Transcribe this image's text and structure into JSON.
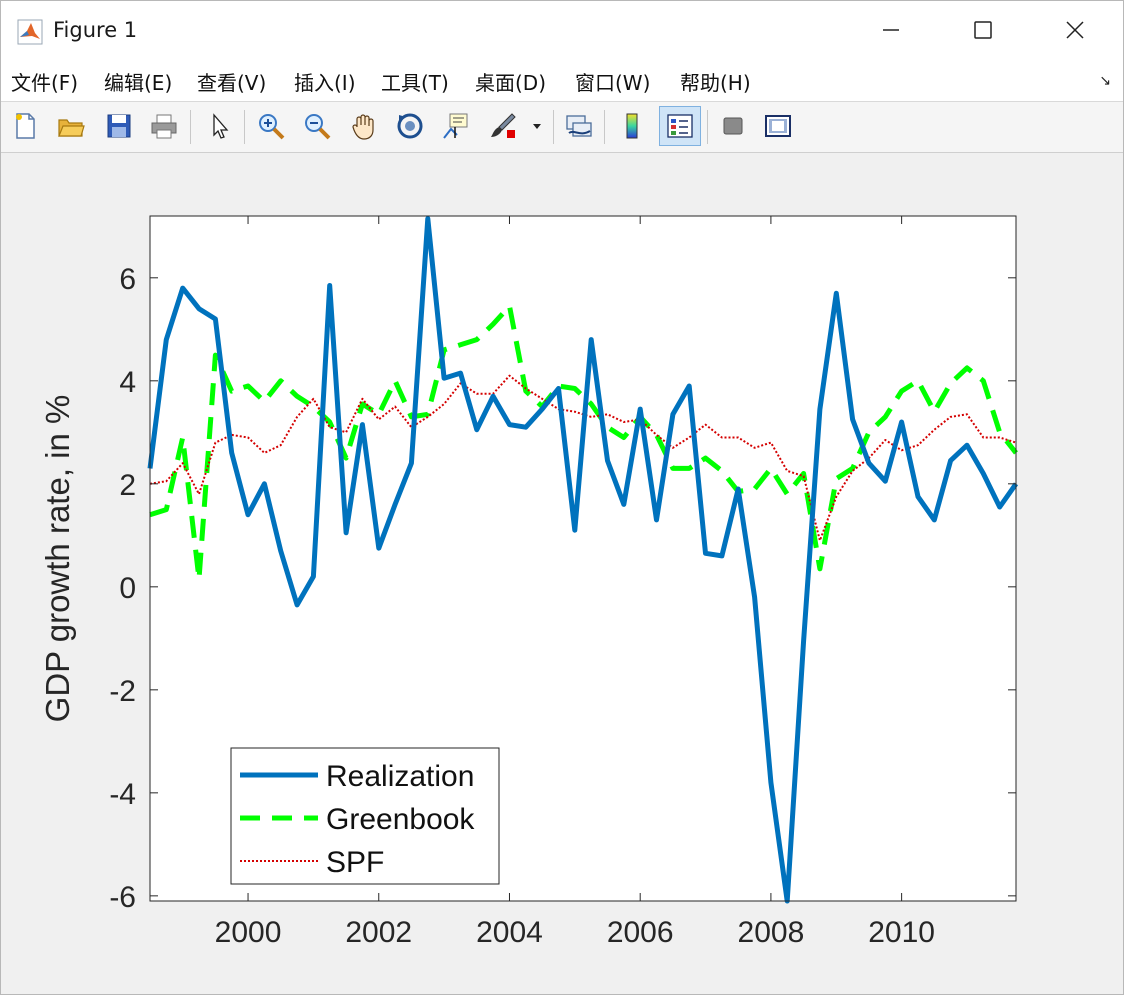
{
  "window": {
    "title": "Figure 1"
  },
  "menu": [
    "文件(F)",
    "编辑(E)",
    "查看(V)",
    "插入(I)",
    "工具(T)",
    "桌面(D)",
    "窗口(W)",
    "帮助(H)"
  ],
  "toolbar": {
    "icons": [
      "new-figure-icon",
      "open-file-icon",
      "save-icon",
      "print-icon",
      "select-arrow-icon",
      "zoom-in-icon",
      "zoom-out-icon",
      "pan-hand-icon",
      "rotate-3d-icon",
      "data-cursor-icon",
      "brush-icon",
      "link-plot-icon",
      "colorbar-icon",
      "legend-icon",
      "hide-plot-tools-icon",
      "show-plot-tools-icon"
    ]
  },
  "chart_data": {
    "type": "line",
    "title": "",
    "xlabel": "",
    "ylabel": "GDP growth rate, in %",
    "xlim": [
      1998.5,
      2011.75
    ],
    "ylim": [
      -6.1,
      7.2
    ],
    "xticks": [
      2000,
      2002,
      2004,
      2006,
      2008,
      2010
    ],
    "yticks": [
      -6,
      -4,
      -2,
      0,
      2,
      4,
      6
    ],
    "legend_position": "bottom-left",
    "grid": false,
    "series": [
      {
        "name": "Realization",
        "color": "#0072bd",
        "style": "solid",
        "points": [
          [
            1998.5,
            2.3
          ],
          [
            1998.75,
            4.8
          ],
          [
            1999.0,
            5.8
          ],
          [
            1999.25,
            5.4
          ],
          [
            1999.5,
            5.2
          ],
          [
            1999.75,
            2.6
          ],
          [
            2000.0,
            1.4
          ],
          [
            2000.25,
            2.0
          ],
          [
            2000.5,
            0.7
          ],
          [
            2000.75,
            -0.35
          ],
          [
            2001.0,
            0.2
          ],
          [
            2001.25,
            5.85
          ],
          [
            2001.5,
            1.05
          ],
          [
            2001.75,
            3.15
          ],
          [
            2002.0,
            0.75
          ],
          [
            2002.25,
            1.6
          ],
          [
            2002.5,
            2.4
          ],
          [
            2002.75,
            7.15
          ],
          [
            2003.0,
            4.05
          ],
          [
            2003.25,
            4.15
          ],
          [
            2003.5,
            3.05
          ],
          [
            2003.75,
            3.7
          ],
          [
            2004.0,
            3.15
          ],
          [
            2004.25,
            3.1
          ],
          [
            2004.5,
            3.45
          ],
          [
            2004.75,
            3.85
          ],
          [
            2005.0,
            1.1
          ],
          [
            2005.25,
            4.8
          ],
          [
            2005.5,
            2.45
          ],
          [
            2005.75,
            1.6
          ],
          [
            2006.0,
            3.45
          ],
          [
            2006.25,
            1.3
          ],
          [
            2006.5,
            3.35
          ],
          [
            2006.75,
            3.9
          ],
          [
            2007.0,
            0.65
          ],
          [
            2007.25,
            0.6
          ],
          [
            2007.5,
            1.9
          ],
          [
            2007.75,
            -0.2
          ],
          [
            2008.0,
            -3.8
          ],
          [
            2008.25,
            -6.1
          ],
          [
            2008.5,
            -1.05
          ],
          [
            2008.75,
            3.45
          ],
          [
            2009.0,
            5.7
          ],
          [
            2009.25,
            3.25
          ],
          [
            2009.5,
            2.4
          ],
          [
            2009.75,
            2.05
          ],
          [
            2010.0,
            3.2
          ],
          [
            2010.25,
            1.75
          ],
          [
            2010.5,
            1.3
          ],
          [
            2010.75,
            2.45
          ],
          [
            2011.0,
            2.75
          ],
          [
            2011.25,
            2.2
          ],
          [
            2011.5,
            1.55
          ],
          [
            2011.75,
            2.0
          ]
        ]
      },
      {
        "name": "Greenbook",
        "color": "#00ff00",
        "style": "dashed",
        "points": [
          [
            1998.5,
            1.4
          ],
          [
            1998.75,
            1.5
          ],
          [
            1999.0,
            2.9
          ],
          [
            1999.25,
            0.15
          ],
          [
            1999.5,
            4.5
          ],
          [
            1999.75,
            3.8
          ],
          [
            2000.0,
            3.9
          ],
          [
            2000.25,
            3.6
          ],
          [
            2000.5,
            4.0
          ],
          [
            2000.75,
            3.7
          ],
          [
            2001.0,
            3.5
          ],
          [
            2001.25,
            3.2
          ],
          [
            2001.5,
            2.5
          ],
          [
            2001.75,
            3.55
          ],
          [
            2002.0,
            3.35
          ],
          [
            2002.25,
            4.0
          ],
          [
            2002.5,
            3.3
          ],
          [
            2002.75,
            3.35
          ],
          [
            2003.0,
            4.6
          ],
          [
            2003.25,
            4.7
          ],
          [
            2003.5,
            4.8
          ],
          [
            2003.75,
            5.1
          ],
          [
            2004.0,
            5.45
          ],
          [
            2004.25,
            3.8
          ],
          [
            2004.5,
            3.5
          ],
          [
            2004.75,
            3.9
          ],
          [
            2005.0,
            3.85
          ],
          [
            2005.25,
            3.55
          ],
          [
            2005.5,
            3.1
          ],
          [
            2005.75,
            2.9
          ],
          [
            2006.0,
            3.3
          ],
          [
            2006.25,
            2.95
          ],
          [
            2006.5,
            2.3
          ],
          [
            2006.75,
            2.3
          ],
          [
            2007.0,
            2.5
          ],
          [
            2007.25,
            2.25
          ],
          [
            2007.5,
            1.85
          ],
          [
            2007.75,
            1.9
          ],
          [
            2008.0,
            2.3
          ],
          [
            2008.25,
            1.8
          ],
          [
            2008.5,
            2.2
          ],
          [
            2008.75,
            0.35
          ],
          [
            2009.0,
            2.1
          ],
          [
            2009.25,
            2.3
          ],
          [
            2009.5,
            3.0
          ],
          [
            2009.75,
            3.3
          ],
          [
            2010.0,
            3.8
          ],
          [
            2010.25,
            4.0
          ],
          [
            2010.5,
            3.4
          ],
          [
            2010.75,
            3.95
          ],
          [
            2011.0,
            4.25
          ],
          [
            2011.25,
            4.0
          ],
          [
            2011.5,
            3.0
          ],
          [
            2011.75,
            2.6
          ]
        ]
      },
      {
        "name": "SPF",
        "color": "#d40000",
        "style": "dotted",
        "points": [
          [
            1998.5,
            2.0
          ],
          [
            1998.75,
            2.05
          ],
          [
            1999.0,
            2.4
          ],
          [
            1999.25,
            1.8
          ],
          [
            1999.5,
            2.8
          ],
          [
            1999.75,
            2.95
          ],
          [
            2000.0,
            2.9
          ],
          [
            2000.25,
            2.6
          ],
          [
            2000.5,
            2.75
          ],
          [
            2000.75,
            3.3
          ],
          [
            2001.0,
            3.65
          ],
          [
            2001.25,
            3.1
          ],
          [
            2001.5,
            3.0
          ],
          [
            2001.75,
            3.65
          ],
          [
            2002.0,
            3.25
          ],
          [
            2002.25,
            3.5
          ],
          [
            2002.5,
            3.1
          ],
          [
            2002.75,
            3.3
          ],
          [
            2003.0,
            3.55
          ],
          [
            2003.25,
            3.95
          ],
          [
            2003.5,
            3.75
          ],
          [
            2003.75,
            3.75
          ],
          [
            2004.0,
            4.1
          ],
          [
            2004.25,
            3.85
          ],
          [
            2004.5,
            3.65
          ],
          [
            2004.75,
            3.45
          ],
          [
            2005.0,
            3.4
          ],
          [
            2005.25,
            3.3
          ],
          [
            2005.5,
            3.35
          ],
          [
            2005.75,
            3.2
          ],
          [
            2006.0,
            3.25
          ],
          [
            2006.25,
            2.95
          ],
          [
            2006.5,
            2.7
          ],
          [
            2006.75,
            2.9
          ],
          [
            2007.0,
            3.15
          ],
          [
            2007.25,
            2.9
          ],
          [
            2007.5,
            2.9
          ],
          [
            2007.75,
            2.7
          ],
          [
            2008.0,
            2.8
          ],
          [
            2008.25,
            2.25
          ],
          [
            2008.5,
            2.15
          ],
          [
            2008.75,
            0.9
          ],
          [
            2009.0,
            1.75
          ],
          [
            2009.25,
            2.25
          ],
          [
            2009.5,
            2.5
          ],
          [
            2009.75,
            2.85
          ],
          [
            2010.0,
            2.65
          ],
          [
            2010.25,
            2.75
          ],
          [
            2010.5,
            3.05
          ],
          [
            2010.75,
            3.3
          ],
          [
            2011.0,
            3.35
          ],
          [
            2011.25,
            2.9
          ],
          [
            2011.5,
            2.9
          ],
          [
            2011.75,
            2.8
          ]
        ]
      }
    ]
  }
}
